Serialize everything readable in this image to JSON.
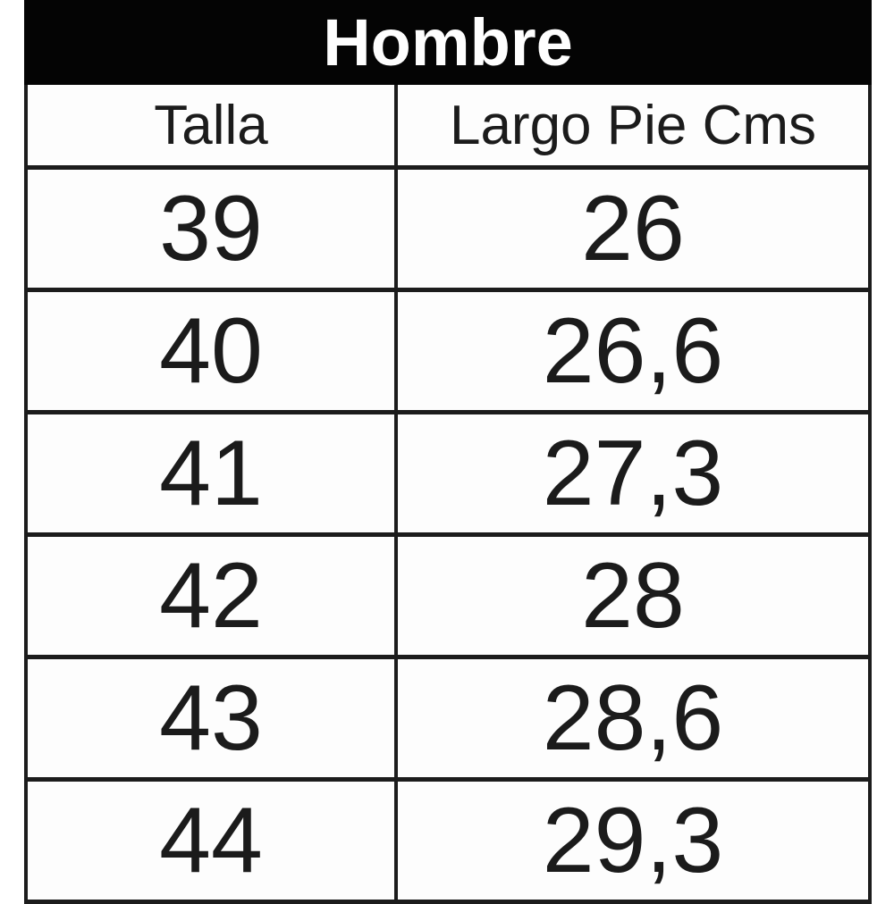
{
  "title": "Hombre",
  "table": {
    "columns": [
      "Talla",
      "Largo Pie Cms"
    ],
    "rows": [
      {
        "talla": "39",
        "largo": "26"
      },
      {
        "talla": "40",
        "largo": "26,6"
      },
      {
        "talla": "41",
        "largo": "27,3"
      },
      {
        "talla": "42",
        "largo": "28"
      },
      {
        "talla": "43",
        "largo": "28,6"
      },
      {
        "talla": "44",
        "largo": "29,3"
      }
    ]
  },
  "colors": {
    "title_bg": "#040404",
    "title_text": "#fefefe",
    "border": "#1c1c1c",
    "cell_bg": "#fdfdfd",
    "cell_text": "#1b1b1b"
  },
  "chart_data": {
    "type": "table",
    "title": "Hombre",
    "columns": [
      "Talla",
      "Largo Pie Cms"
    ],
    "rows": [
      [
        "39",
        "26"
      ],
      [
        "40",
        "26,6"
      ],
      [
        "41",
        "27,3"
      ],
      [
        "42",
        "28"
      ],
      [
        "43",
        "28,6"
      ],
      [
        "44",
        "29,3"
      ]
    ]
  }
}
